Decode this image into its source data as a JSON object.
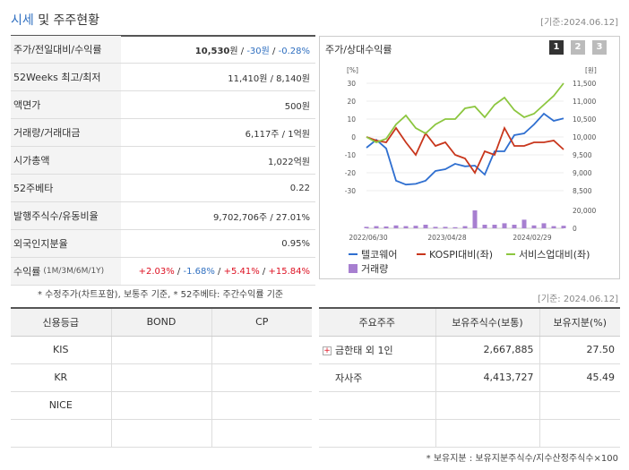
{
  "header": {
    "title_main": "시세",
    "title_rest": " 및 주주현황",
    "date": "[기준:2024.06.12]"
  },
  "quote": {
    "rows": [
      {
        "label": "주가/전일대비/수익률",
        "price": "10,530",
        "price_unit": "원 / ",
        "change": "-30원",
        "sep": " / ",
        "rate": "-0.28%"
      },
      {
        "label": "52Weeks 최고/최저",
        "value": "11,410원 / 8,140원"
      },
      {
        "label": "액면가",
        "value": "500원"
      },
      {
        "label": "거래량/거래대금",
        "value": "6,117주 / 1억원"
      },
      {
        "label": "시가총액",
        "value": "1,022억원"
      },
      {
        "label": "52주베타",
        "value": "0.22"
      },
      {
        "label": "발행주식수/유동비율",
        "value": "9,702,706주 / 27.01%"
      },
      {
        "label": "외국인지분율",
        "value": "0.95%"
      },
      {
        "label": "수익률",
        "label_small": "(1M/3M/6M/1Y)",
        "r1": "+2.03%",
        "r2": "-1.68%",
        "r3": "+5.41%",
        "r4": "+15.84%",
        "sep": " / "
      }
    ],
    "note": "* 수정주가(차트포함), 보통주 기준, * 52주베타: 주간수익률 기준"
  },
  "chart_panel": {
    "title": "주가/상대수익률",
    "buttons": [
      "1",
      "2",
      "3"
    ],
    "legend": [
      "텔코웨어",
      "KOSPI대비(좌)",
      "서비스업대비(좌)",
      "거래량"
    ],
    "colors": {
      "stock": "#2f6fd0",
      "kospi": "#c8361c",
      "service": "#8cc63f",
      "volume": "#a77fd0"
    }
  },
  "chart_data": {
    "type": "line",
    "left_axis_unit": "[%]",
    "right_axis_unit": "[원]",
    "left_ticks": [
      "30",
      "20",
      "10",
      "0",
      "-10",
      "-20",
      "-30"
    ],
    "right_ticks": [
      "11,500",
      "11,000",
      "10,500",
      "10,000",
      "9,500",
      "9,000",
      "8,500"
    ],
    "volume_ticks": [
      "20,000",
      "0"
    ],
    "x_ticks": [
      "2022/06/30",
      "2023/04/28",
      "2024/02/29"
    ],
    "series": [
      {
        "name": "텔코웨어",
        "axis": "right",
        "values": [
          9700,
          9920,
          9680,
          8780,
          8670,
          8690,
          8780,
          9050,
          9100,
          9250,
          9180,
          9200,
          8950,
          9600,
          9600,
          10050,
          10100,
          10350,
          10650,
          10450,
          10520
        ]
      },
      {
        "name": "KOSPI대비(좌)",
        "axis": "left",
        "values": [
          0,
          -2,
          -3,
          5,
          -3,
          -10,
          2,
          -5,
          -3,
          -10,
          -12,
          -20,
          -8,
          -10,
          5,
          -5,
          -5,
          -3,
          -3,
          -2,
          -7
        ]
      },
      {
        "name": "서비스업대비(좌)",
        "axis": "left",
        "values": [
          0,
          -3,
          -1,
          7,
          12,
          5,
          2,
          7,
          10,
          10,
          16,
          17,
          11,
          18,
          22,
          15,
          11,
          13,
          18,
          23,
          30
        ]
      },
      {
        "name": "거래량",
        "axis": "volume",
        "values": [
          2000,
          3000,
          2500,
          4000,
          3000,
          3500,
          5000,
          2000,
          2000,
          1500,
          3000,
          25000,
          5000,
          5000,
          7000,
          5000,
          12000,
          4000,
          7000,
          3000,
          3500
        ]
      }
    ]
  },
  "date_mid": "[기준: 2024.06.12]",
  "credit": {
    "headers": [
      "신용등급",
      "BOND",
      "CP"
    ],
    "rows": [
      [
        "KIS",
        "",
        ""
      ],
      [
        "KR",
        "",
        ""
      ],
      [
        "NICE",
        "",
        ""
      ],
      [
        "",
        "",
        ""
      ]
    ]
  },
  "shareholders": {
    "headers": [
      "주요주주",
      "보유주식수(보통)",
      "보유지분(%)"
    ],
    "rows": [
      {
        "name": "금한태 외 1인",
        "shares": "2,667,885",
        "pct": "27.50",
        "expand": "+"
      },
      {
        "name": "자사주",
        "shares": "4,413,727",
        "pct": "45.49"
      }
    ],
    "note": "* 보유지분 : 보유지분주식수/지수산정주식수×100"
  }
}
